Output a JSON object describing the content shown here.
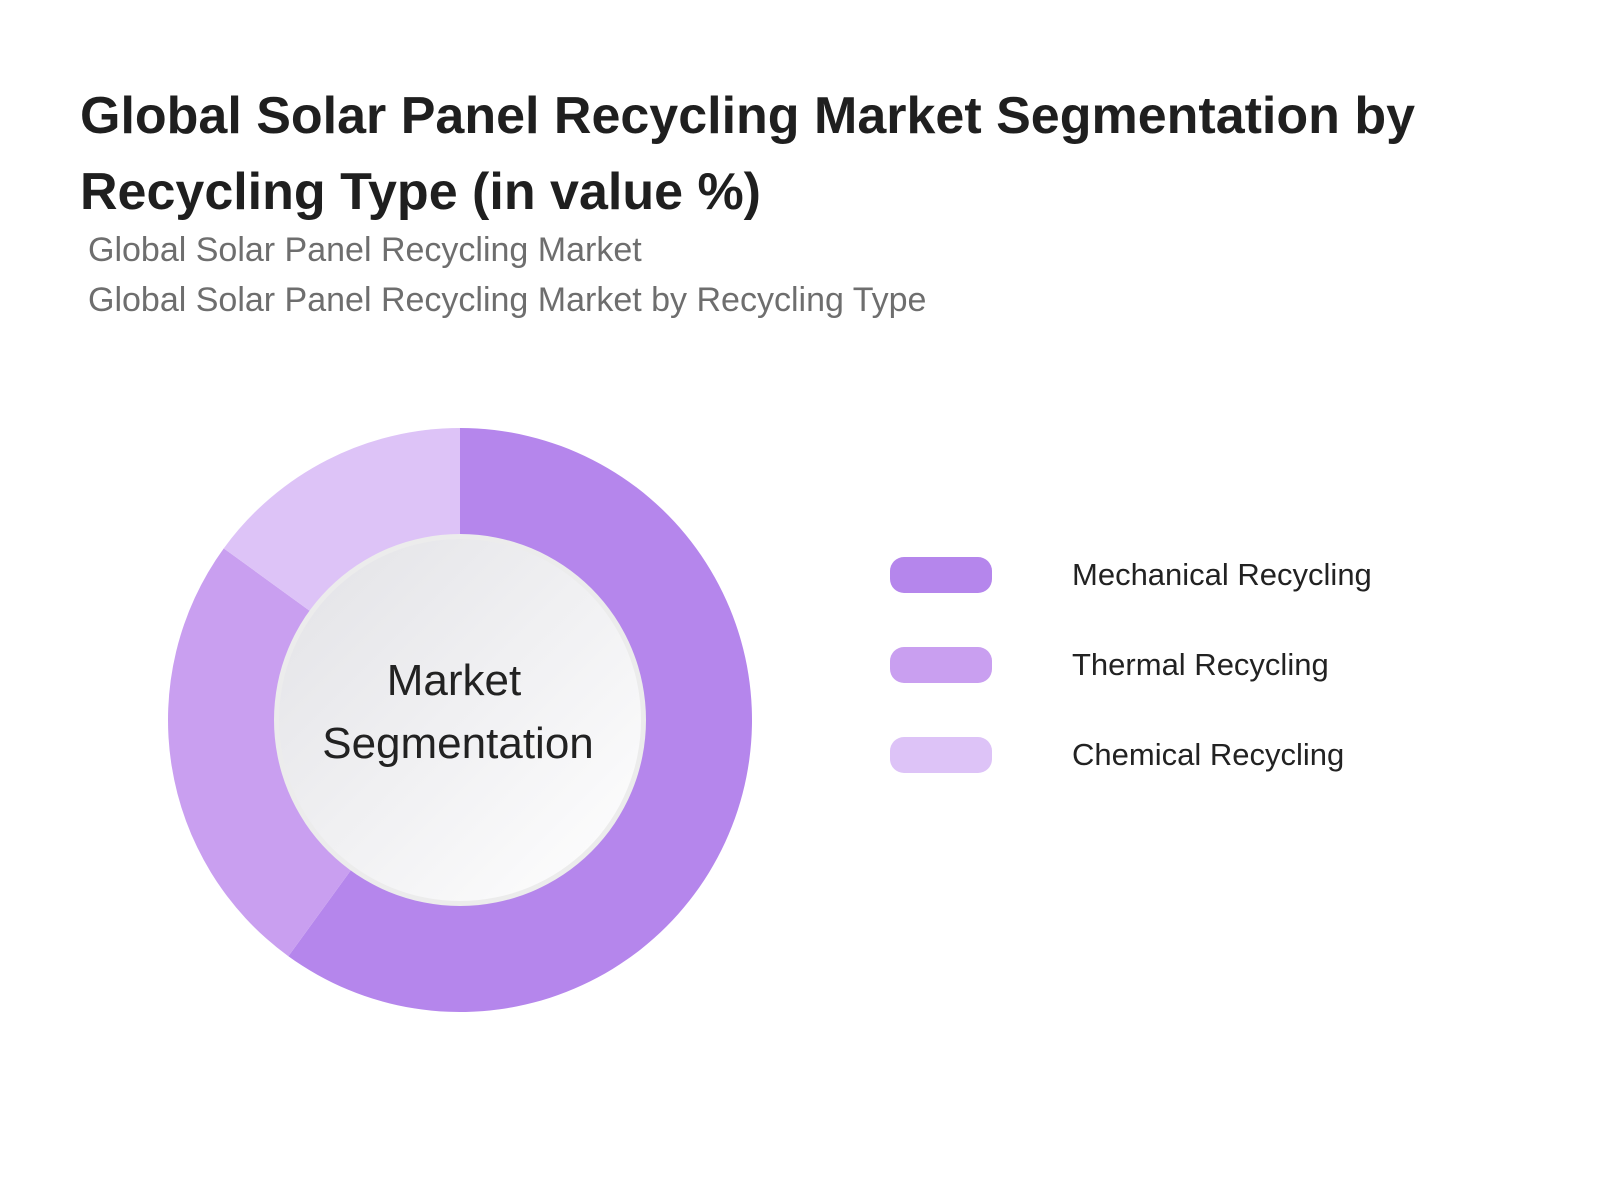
{
  "title": "Global Solar Panel Recycling Market Segmentation by Recycling Type (in value %)",
  "subtitle_line1": "Global Solar Panel Recycling Market",
  "subtitle_line2": "Global Solar Panel Recycling Market by Recycling Type",
  "center_label_line1": "Market",
  "center_label_line2": "Segmentation",
  "chart_data": {
    "type": "pie",
    "variant": "donut",
    "title": "Global Solar Panel Recycling Market Segmentation by Recycling Type (in value %)",
    "categories": [
      "Mechanical Recycling",
      "Thermal Recycling",
      "Chemical Recycling"
    ],
    "values": [
      60,
      25,
      15
    ],
    "colors": [
      "#b586ec",
      "#c99ff0",
      "#ddc3f7"
    ],
    "start_angle_deg": 0,
    "direction": "clockwise",
    "legend_position": "right"
  }
}
